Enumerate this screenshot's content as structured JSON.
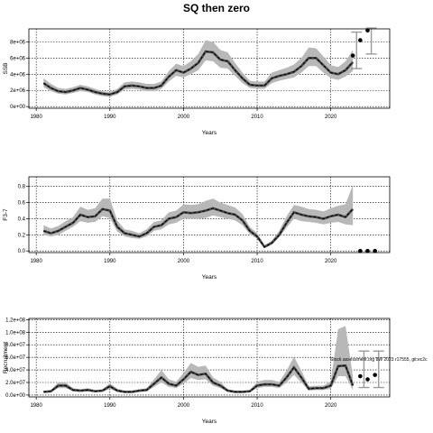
{
  "title": "SQ then zero",
  "note": "Stock assessment.org 8W 2023 r17555, git:ec2c",
  "chart_data": [
    {
      "type": "line",
      "ylabel": "SSB",
      "xlabel": "Years",
      "xlim": [
        1979,
        2028
      ],
      "ylim": [
        -200000,
        9600000
      ],
      "xticks": [
        1980,
        1990,
        2000,
        2010,
        2020
      ],
      "yticks": [
        0,
        2000000,
        4000000,
        6000000,
        8000000
      ],
      "ytick_labels": [
        "0e+00",
        "2e+06",
        "4e+06",
        "6e+06",
        "8e+06"
      ],
      "grid": true,
      "x": [
        1981,
        1982,
        1983,
        1984,
        1985,
        1986,
        1987,
        1988,
        1989,
        1990,
        1991,
        1992,
        1993,
        1994,
        1995,
        1996,
        1997,
        1998,
        1999,
        2000,
        2001,
        2002,
        2003,
        2004,
        2005,
        2006,
        2007,
        2008,
        2009,
        2010,
        2011,
        2012,
        2013,
        2014,
        2015,
        2016,
        2017,
        2018,
        2019,
        2020,
        2021,
        2022,
        2023
      ],
      "series": [
        {
          "role": "estimate",
          "values": [
            2900000,
            2300000,
            1900000,
            1800000,
            2000000,
            2300000,
            2100000,
            1800000,
            1600000,
            1500000,
            1800000,
            2500000,
            2600000,
            2500000,
            2300000,
            2300000,
            2600000,
            3700000,
            4500000,
            4200000,
            4700000,
            5400000,
            6800000,
            6700000,
            5800000,
            5600000,
            4500000,
            3500000,
            2700000,
            2600000,
            2600000,
            3500000,
            3800000,
            4000000,
            4300000,
            5000000,
            6000000,
            6000000,
            5100000,
            4200000,
            4000000,
            4500000,
            5500000
          ]
        },
        {
          "role": "lower",
          "values": [
            2400000,
            1900000,
            1600000,
            1500000,
            1700000,
            1900000,
            1800000,
            1500000,
            1300000,
            1200000,
            1500000,
            2100000,
            2200000,
            2100000,
            1900000,
            1900000,
            2200000,
            3100000,
            3800000,
            3600000,
            4000000,
            4500000,
            5700000,
            5600000,
            4800000,
            4700000,
            3800000,
            2900000,
            2300000,
            2200000,
            2200000,
            2900000,
            3200000,
            3400000,
            3600000,
            4200000,
            5000000,
            5000000,
            4200000,
            3500000,
            3300000,
            3700000,
            4400000
          ]
        },
        {
          "role": "upper",
          "values": [
            3500000,
            2800000,
            2300000,
            2200000,
            2400000,
            2700000,
            2500000,
            2200000,
            1900000,
            1800000,
            2200000,
            3000000,
            3100000,
            3000000,
            2800000,
            2800000,
            3100000,
            4400000,
            5300000,
            5000000,
            5600000,
            6500000,
            8200000,
            8000000,
            7000000,
            6700000,
            5400000,
            4200000,
            3200000,
            3100000,
            3100000,
            4200000,
            4500000,
            4800000,
            5200000,
            6000000,
            7300000,
            7200000,
            6200000,
            5100000,
            4900000,
            5600000,
            7000000
          ]
        }
      ],
      "projection": {
        "points": [
          {
            "x": 2023,
            "y": 6300000
          },
          {
            "x": 2024,
            "y": 8200000
          },
          {
            "x": 2025,
            "y": 9400000
          }
        ],
        "intervals": [
          {
            "x": 2023.5,
            "low": 4700000,
            "high": 9200000
          },
          {
            "x": 2025.5,
            "low": 6500000,
            "high": 9700000
          }
        ]
      }
    },
    {
      "type": "line",
      "ylabel": "F3-7",
      "xlabel": "Years",
      "xlim": [
        1979,
        2028
      ],
      "ylim": [
        -0.02,
        0.92
      ],
      "xticks": [
        1980,
        1990,
        2000,
        2010,
        2020
      ],
      "yticks": [
        0.0,
        0.2,
        0.4,
        0.6,
        0.8
      ],
      "ytick_labels": [
        "0.0",
        "0.2",
        "0.4",
        "0.6",
        "0.8"
      ],
      "grid": true,
      "x": [
        1981,
        1982,
        1983,
        1984,
        1985,
        1986,
        1987,
        1988,
        1989,
        1990,
        1991,
        1992,
        1993,
        1994,
        1995,
        1996,
        1997,
        1998,
        1999,
        2000,
        2001,
        2002,
        2003,
        2004,
        2005,
        2006,
        2007,
        2008,
        2009,
        2010,
        2011,
        2012,
        2013,
        2014,
        2015,
        2016,
        2017,
        2018,
        2019,
        2020,
        2021,
        2022,
        2023
      ],
      "series": [
        {
          "role": "estimate",
          "values": [
            0.25,
            0.22,
            0.25,
            0.3,
            0.35,
            0.45,
            0.42,
            0.43,
            0.52,
            0.5,
            0.3,
            0.22,
            0.2,
            0.18,
            0.22,
            0.3,
            0.32,
            0.4,
            0.42,
            0.48,
            0.47,
            0.48,
            0.5,
            0.53,
            0.5,
            0.47,
            0.45,
            0.38,
            0.25,
            0.18,
            0.05,
            0.1,
            0.2,
            0.35,
            0.48,
            0.45,
            0.43,
            0.42,
            0.4,
            0.43,
            0.45,
            0.42,
            0.52
          ]
        },
        {
          "role": "lower",
          "values": [
            0.2,
            0.18,
            0.2,
            0.25,
            0.3,
            0.37,
            0.35,
            0.36,
            0.43,
            0.41,
            0.24,
            0.18,
            0.16,
            0.15,
            0.18,
            0.25,
            0.27,
            0.33,
            0.35,
            0.4,
            0.4,
            0.4,
            0.41,
            0.44,
            0.42,
            0.4,
            0.38,
            0.32,
            0.21,
            0.15,
            0.04,
            0.08,
            0.17,
            0.29,
            0.4,
            0.37,
            0.36,
            0.35,
            0.33,
            0.35,
            0.36,
            0.33,
            0.32
          ]
        },
        {
          "role": "upper",
          "values": [
            0.32,
            0.28,
            0.31,
            0.37,
            0.42,
            0.55,
            0.51,
            0.53,
            0.65,
            0.65,
            0.38,
            0.27,
            0.25,
            0.22,
            0.27,
            0.36,
            0.38,
            0.48,
            0.5,
            0.58,
            0.57,
            0.58,
            0.62,
            0.65,
            0.6,
            0.57,
            0.54,
            0.46,
            0.3,
            0.22,
            0.07,
            0.13,
            0.25,
            0.43,
            0.57,
            0.55,
            0.52,
            0.51,
            0.49,
            0.53,
            0.56,
            0.58,
            0.82
          ]
        }
      ],
      "projection": {
        "points": [
          {
            "x": 2024,
            "y": 0.0
          },
          {
            "x": 2025,
            "y": 0.0
          },
          {
            "x": 2026,
            "y": 0.0
          }
        ],
        "intervals": []
      }
    },
    {
      "type": "line",
      "ylabel": "Recruitment ",
      "xlabel": "Years",
      "xlim": [
        1979,
        2028
      ],
      "ylim": [
        -3000000,
        122000000
      ],
      "xticks": [
        1980,
        1990,
        2000,
        2010,
        2020
      ],
      "yticks": [
        0,
        20000000,
        40000000,
        60000000,
        80000000,
        100000000,
        120000000
      ],
      "ytick_labels": [
        "0.0e+00",
        "2.0e+07",
        "4.0e+07",
        "6.0e+07",
        "8.0e+07",
        "1.0e+08",
        "1.2e+08"
      ],
      "grid": true,
      "x": [
        1981,
        1982,
        1983,
        1984,
        1985,
        1986,
        1987,
        1988,
        1989,
        1990,
        1991,
        1992,
        1993,
        1994,
        1995,
        1996,
        1997,
        1998,
        1999,
        2000,
        2001,
        2002,
        2003,
        2004,
        2005,
        2006,
        2007,
        2008,
        2009,
        2010,
        2011,
        2012,
        2013,
        2014,
        2015,
        2016,
        2017,
        2018,
        2019,
        2020,
        2021,
        2022,
        2023
      ],
      "series": [
        {
          "role": "estimate",
          "values": [
            5000000,
            6000000,
            15000000,
            15000000,
            8000000,
            7000000,
            8000000,
            6000000,
            7000000,
            14000000,
            7000000,
            5000000,
            5000000,
            7000000,
            8000000,
            18000000,
            28000000,
            18000000,
            15000000,
            25000000,
            37000000,
            32000000,
            34000000,
            20000000,
            15000000,
            7000000,
            5000000,
            5000000,
            6000000,
            15000000,
            17000000,
            17000000,
            15000000,
            28000000,
            44000000,
            28000000,
            10000000,
            11000000,
            11000000,
            15000000,
            46000000,
            47000000,
            15000000
          ]
        },
        {
          "role": "lower",
          "values": [
            4000000,
            5000000,
            11000000,
            11000000,
            6000000,
            5000000,
            6000000,
            5000000,
            5000000,
            10000000,
            5000000,
            4000000,
            4000000,
            5000000,
            6000000,
            13000000,
            20000000,
            13000000,
            11000000,
            18000000,
            27000000,
            24000000,
            25000000,
            15000000,
            11000000,
            5000000,
            4000000,
            4000000,
            5000000,
            11000000,
            13000000,
            13000000,
            11000000,
            20000000,
            32000000,
            20000000,
            7000000,
            8000000,
            8000000,
            10000000,
            30000000,
            30000000,
            8000000
          ]
        },
        {
          "role": "upper",
          "values": [
            6000000,
            8000000,
            20000000,
            20000000,
            11000000,
            9000000,
            11000000,
            8000000,
            9000000,
            19000000,
            10000000,
            7000000,
            7000000,
            9000000,
            11000000,
            25000000,
            40000000,
            25000000,
            21000000,
            35000000,
            51000000,
            45000000,
            47000000,
            28000000,
            21000000,
            9000000,
            7000000,
            7000000,
            8000000,
            21000000,
            24000000,
            24000000,
            21000000,
            39000000,
            61000000,
            39000000,
            14000000,
            15000000,
            15000000,
            22000000,
            105000000,
            110000000,
            30000000
          ]
        }
      ],
      "projection": {
        "points": [
          {
            "x": 2024,
            "y": 30000000
          },
          {
            "x": 2025,
            "y": 25000000
          },
          {
            "x": 2026,
            "y": 32000000
          }
        ],
        "intervals": [
          {
            "x": 2024.5,
            "low": 12000000,
            "high": 70000000
          },
          {
            "x": 2026.5,
            "low": 12000000,
            "high": 70000000
          }
        ]
      }
    }
  ]
}
